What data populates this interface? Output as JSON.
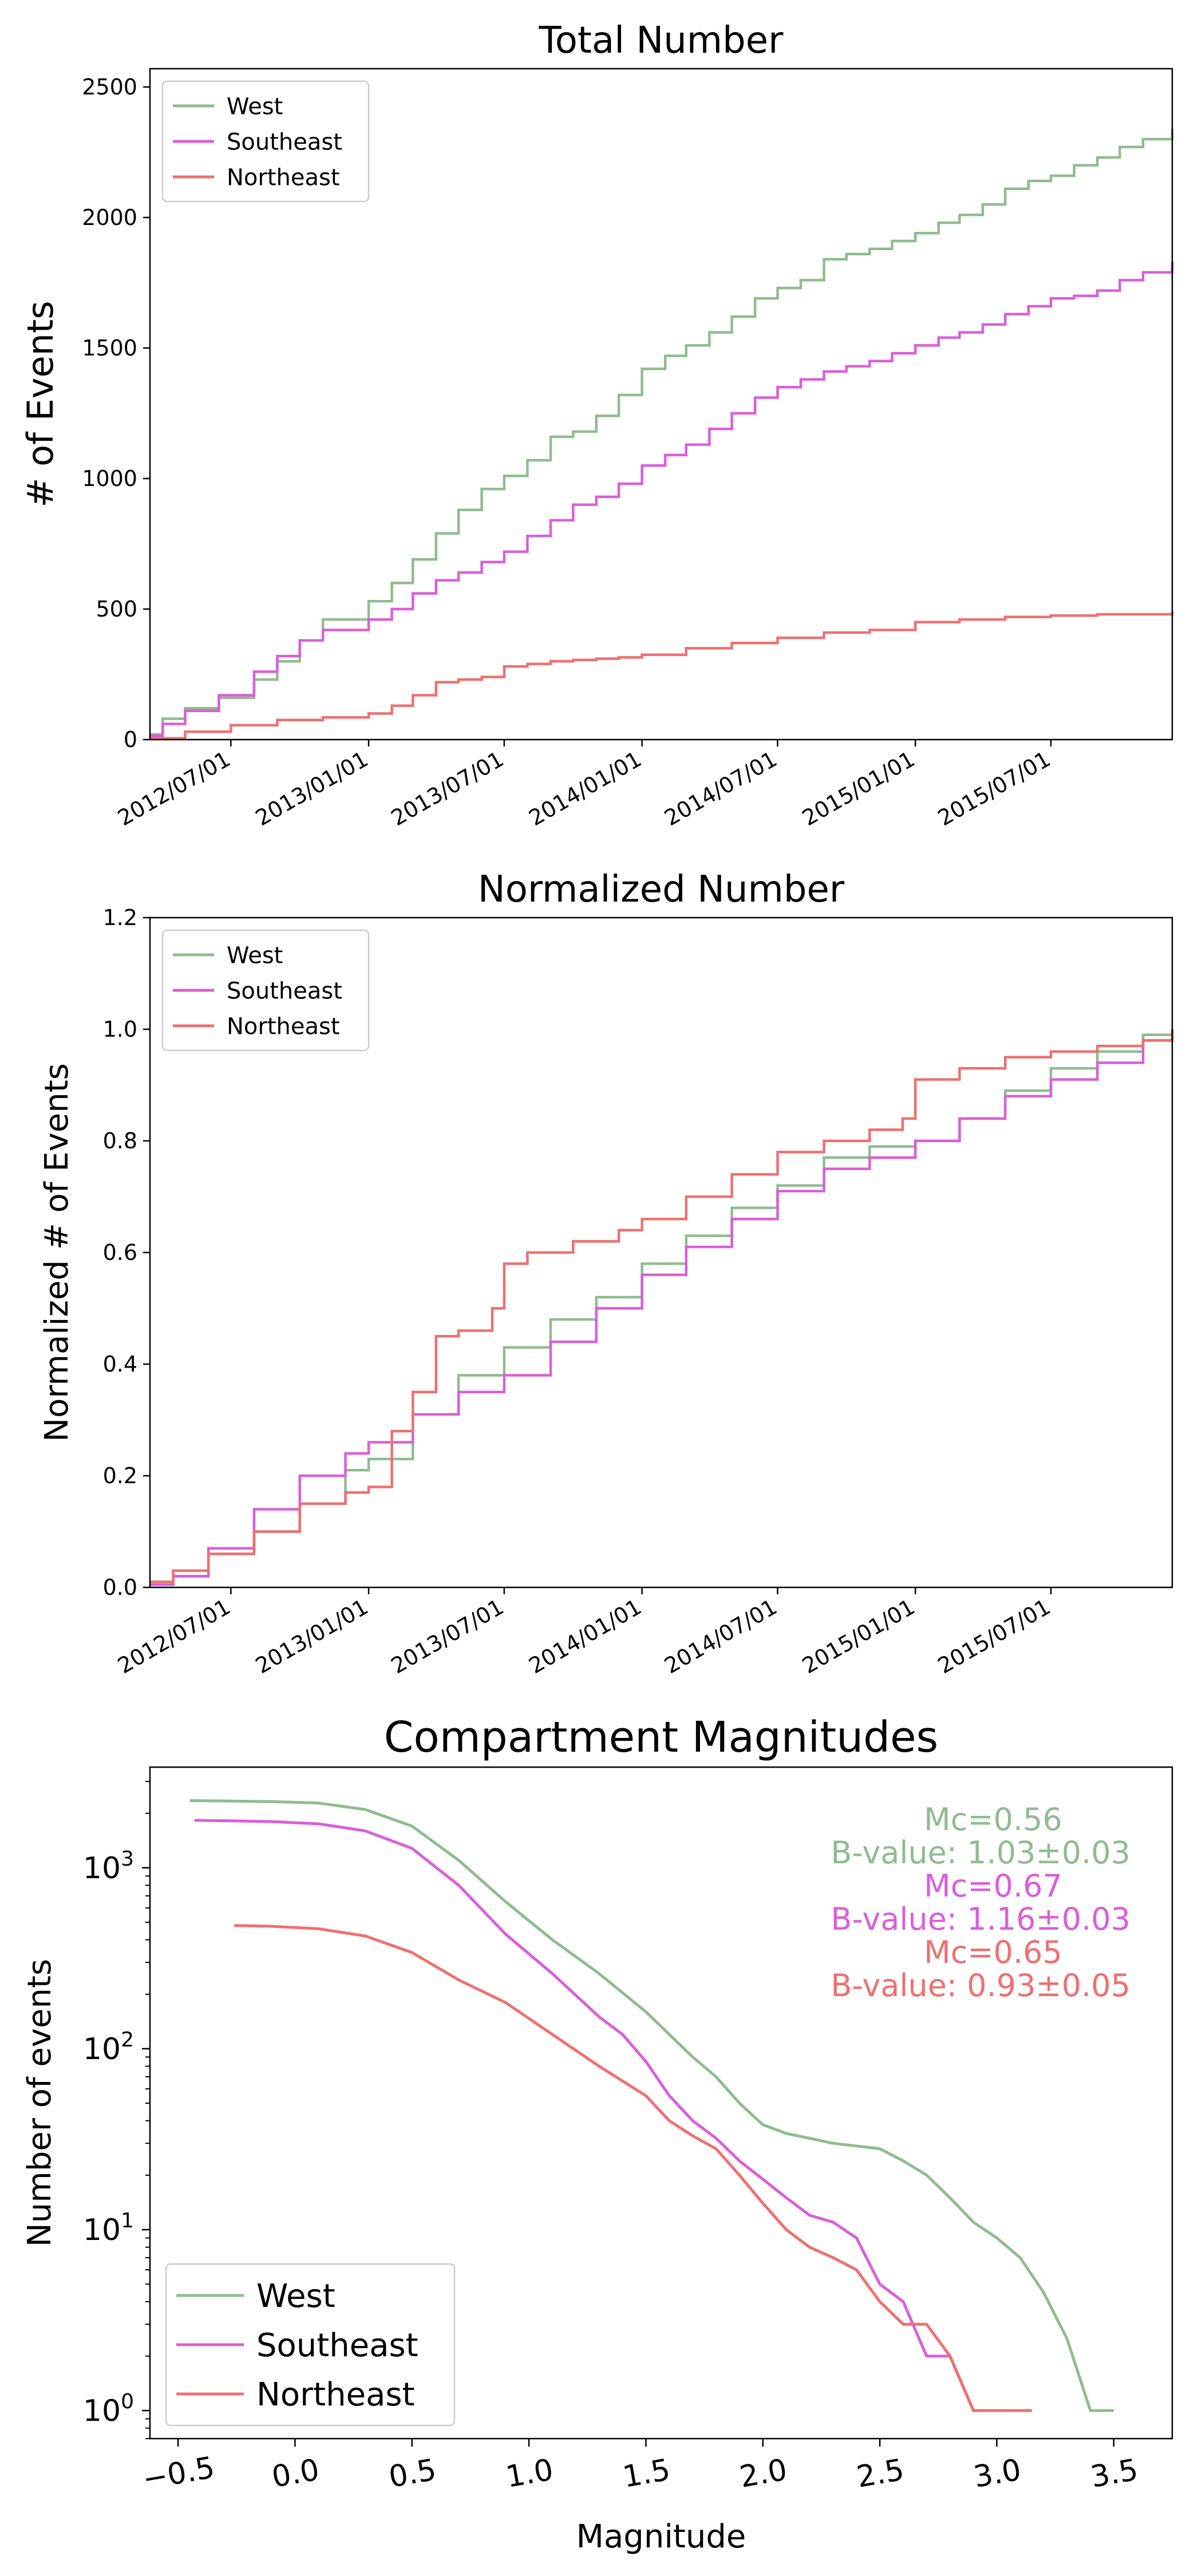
{
  "chart_data": [
    {
      "type": "line",
      "title": "Total Number",
      "xlabel": "",
      "ylabel": "# of Events",
      "ylim": [
        0,
        2570
      ],
      "xlim": [
        "2012-03-15",
        "2015-12-10"
      ],
      "x_ticks": [
        "2012/07/01",
        "2013/01/01",
        "2013/07/01",
        "2014/01/01",
        "2014/07/01",
        "2015/01/01",
        "2015/07/01"
      ],
      "y_ticks": [
        0,
        500,
        1000,
        1500,
        2000,
        2500
      ],
      "y_tick_labels": [
        "0",
        "500",
        "1000",
        "1500",
        "2000",
        "2500"
      ],
      "legend": "top-left",
      "grid": false,
      "series": [
        {
          "name": "West",
          "color": "#8fbc8f",
          "x": [
            "2012-03-15",
            "2012-04-01",
            "2012-05-01",
            "2012-06-15",
            "2012-08-01",
            "2012-09-01",
            "2012-10-01",
            "2012-11-01",
            "2013-01-01",
            "2013-02-01",
            "2013-03-01",
            "2013-04-01",
            "2013-05-01",
            "2013-06-01",
            "2013-07-01",
            "2013-08-01",
            "2013-09-01",
            "2013-10-01",
            "2013-11-01",
            "2013-12-01",
            "2014-01-01",
            "2014-02-01",
            "2014-03-01",
            "2014-04-01",
            "2014-05-01",
            "2014-06-01",
            "2014-07-01",
            "2014-08-01",
            "2014-09-01",
            "2014-10-01",
            "2014-11-01",
            "2014-12-01",
            "2015-01-01",
            "2015-02-01",
            "2015-03-01",
            "2015-04-01",
            "2015-05-01",
            "2015-06-01",
            "2015-07-01",
            "2015-08-01",
            "2015-09-01",
            "2015-10-01",
            "2015-11-01",
            "2015-12-10"
          ],
          "values": [
            20,
            80,
            120,
            160,
            230,
            300,
            380,
            460,
            530,
            600,
            690,
            790,
            880,
            960,
            1010,
            1070,
            1160,
            1180,
            1240,
            1320,
            1420,
            1470,
            1510,
            1560,
            1620,
            1690,
            1730,
            1760,
            1840,
            1860,
            1880,
            1910,
            1940,
            1980,
            2010,
            2050,
            2110,
            2140,
            2160,
            2200,
            2230,
            2270,
            2300,
            2340
          ]
        },
        {
          "name": "Southeast",
          "color": "#d95fd9",
          "x": [
            "2012-03-15",
            "2012-04-01",
            "2012-05-01",
            "2012-06-15",
            "2012-08-01",
            "2012-09-01",
            "2012-10-01",
            "2012-11-01",
            "2013-01-01",
            "2013-02-01",
            "2013-03-01",
            "2013-04-01",
            "2013-05-01",
            "2013-06-01",
            "2013-07-01",
            "2013-08-01",
            "2013-09-01",
            "2013-10-01",
            "2013-11-01",
            "2013-12-01",
            "2014-01-01",
            "2014-02-01",
            "2014-03-01",
            "2014-04-01",
            "2014-05-01",
            "2014-06-01",
            "2014-07-01",
            "2014-08-01",
            "2014-09-01",
            "2014-10-01",
            "2014-11-01",
            "2014-12-01",
            "2015-01-01",
            "2015-02-01",
            "2015-03-01",
            "2015-04-01",
            "2015-05-01",
            "2015-06-01",
            "2015-07-01",
            "2015-08-01",
            "2015-09-01",
            "2015-10-01",
            "2015-11-01",
            "2015-12-10"
          ],
          "values": [
            15,
            60,
            110,
            170,
            260,
            320,
            380,
            420,
            460,
            500,
            560,
            610,
            640,
            680,
            720,
            780,
            840,
            900,
            930,
            980,
            1050,
            1090,
            1130,
            1190,
            1250,
            1310,
            1350,
            1380,
            1410,
            1430,
            1450,
            1480,
            1510,
            1540,
            1560,
            1590,
            1630,
            1660,
            1690,
            1700,
            1720,
            1760,
            1790,
            1830
          ]
        },
        {
          "name": "Northeast",
          "color": "#ee7070",
          "x": [
            "2012-03-15",
            "2012-05-01",
            "2012-07-01",
            "2012-09-01",
            "2012-11-01",
            "2013-01-01",
            "2013-02-01",
            "2013-03-01",
            "2013-04-01",
            "2013-05-01",
            "2013-06-01",
            "2013-07-01",
            "2013-08-01",
            "2013-09-01",
            "2013-10-01",
            "2013-11-01",
            "2013-12-01",
            "2014-01-01",
            "2014-03-01",
            "2014-05-01",
            "2014-07-01",
            "2014-09-01",
            "2014-11-01",
            "2015-01-01",
            "2015-03-01",
            "2015-05-01",
            "2015-07-01",
            "2015-09-01",
            "2015-12-10"
          ],
          "values": [
            5,
            30,
            55,
            75,
            85,
            100,
            130,
            170,
            220,
            230,
            240,
            280,
            290,
            300,
            305,
            310,
            315,
            325,
            350,
            370,
            390,
            410,
            420,
            450,
            460,
            470,
            475,
            480,
            490
          ]
        }
      ]
    },
    {
      "type": "line",
      "title": "Normalized Number",
      "xlabel": "",
      "ylabel": "Normalized # of Events",
      "ylim": [
        0,
        1.2
      ],
      "xlim": [
        "2012-03-15",
        "2015-12-10"
      ],
      "x_ticks": [
        "2012/07/01",
        "2013/01/01",
        "2013/07/01",
        "2014/01/01",
        "2014/07/01",
        "2015/01/01",
        "2015/07/01"
      ],
      "y_ticks": [
        0,
        0.2,
        0.4,
        0.6,
        0.8,
        1.0,
        1.2
      ],
      "y_tick_labels": [
        "0.0",
        "0.2",
        "0.4",
        "0.6",
        "0.8",
        "1.0",
        "1.2"
      ],
      "legend": "top-left",
      "grid": false,
      "series": [
        {
          "name": "West",
          "color": "#8fbc8f",
          "x": [
            "2012-03-15",
            "2012-04-15",
            "2012-06-01",
            "2012-08-01",
            "2012-10-01",
            "2012-12-01",
            "2013-01-01",
            "2013-03-01",
            "2013-05-01",
            "2013-07-01",
            "2013-09-01",
            "2013-11-01",
            "2014-01-01",
            "2014-03-01",
            "2014-05-01",
            "2014-07-01",
            "2014-09-01",
            "2014-11-01",
            "2015-01-01",
            "2015-03-01",
            "2015-05-01",
            "2015-07-01",
            "2015-09-01",
            "2015-11-01",
            "2015-12-10"
          ],
          "values": [
            0.005,
            0.02,
            0.06,
            0.1,
            0.15,
            0.21,
            0.23,
            0.31,
            0.38,
            0.43,
            0.48,
            0.52,
            0.58,
            0.63,
            0.68,
            0.72,
            0.77,
            0.79,
            0.8,
            0.84,
            0.89,
            0.93,
            0.96,
            0.99,
            1.0
          ]
        },
        {
          "name": "Southeast",
          "color": "#d95fd9",
          "x": [
            "2012-03-15",
            "2012-04-15",
            "2012-06-01",
            "2012-08-01",
            "2012-10-01",
            "2012-12-01",
            "2013-01-01",
            "2013-03-01",
            "2013-05-01",
            "2013-07-01",
            "2013-09-01",
            "2013-11-01",
            "2014-01-01",
            "2014-03-01",
            "2014-05-01",
            "2014-07-01",
            "2014-09-01",
            "2014-11-01",
            "2015-01-01",
            "2015-03-01",
            "2015-05-01",
            "2015-07-01",
            "2015-09-01",
            "2015-11-01",
            "2015-12-10"
          ],
          "values": [
            0.005,
            0.02,
            0.07,
            0.14,
            0.2,
            0.24,
            0.26,
            0.31,
            0.35,
            0.38,
            0.44,
            0.5,
            0.56,
            0.61,
            0.66,
            0.71,
            0.75,
            0.77,
            0.8,
            0.84,
            0.88,
            0.91,
            0.94,
            0.98,
            1.0
          ]
        },
        {
          "name": "Northeast",
          "color": "#ee7070",
          "x": [
            "2012-03-15",
            "2012-04-15",
            "2012-06-01",
            "2012-08-01",
            "2012-10-01",
            "2012-12-01",
            "2013-01-01",
            "2013-02-01",
            "2013-03-01",
            "2013-04-01",
            "2013-05-01",
            "2013-06-15",
            "2013-07-01",
            "2013-08-01",
            "2013-10-01",
            "2013-12-01",
            "2014-01-01",
            "2014-03-01",
            "2014-05-01",
            "2014-07-01",
            "2014-09-01",
            "2014-11-01",
            "2014-12-15",
            "2015-01-01",
            "2015-03-01",
            "2015-05-01",
            "2015-07-01",
            "2015-09-01",
            "2015-11-01",
            "2015-12-10"
          ],
          "values": [
            0.01,
            0.03,
            0.06,
            0.1,
            0.15,
            0.17,
            0.18,
            0.28,
            0.35,
            0.45,
            0.46,
            0.5,
            0.58,
            0.6,
            0.62,
            0.64,
            0.66,
            0.7,
            0.74,
            0.78,
            0.8,
            0.82,
            0.84,
            0.91,
            0.93,
            0.95,
            0.96,
            0.97,
            0.98,
            1.0
          ]
        }
      ]
    },
    {
      "type": "line",
      "title": "Compartment Magnitudes",
      "xlabel": "Magnitude",
      "ylabel": "Number of events",
      "y_scale": "log",
      "xlim": [
        -0.62,
        3.75
      ],
      "ylim": [
        0.7,
        3600
      ],
      "x_ticks": [
        -0.5,
        0.0,
        0.5,
        1.0,
        1.5,
        2.0,
        2.5,
        3.0,
        3.5
      ],
      "x_tick_labels": [
        "−0.5",
        "0.0",
        "0.5",
        "1.0",
        "1.5",
        "2.0",
        "2.5",
        "3.0",
        "3.5"
      ],
      "y_ticks": [
        1,
        10,
        100,
        1000
      ],
      "y_tick_labels": [
        "10",
        "10",
        "10",
        "10"
      ],
      "y_tick_exponents": [
        "0",
        "1",
        "2",
        "3"
      ],
      "legend": "bottom-left",
      "grid": false,
      "annotations": [
        {
          "text": "Mc=0.56",
          "color": "#8fbc8f"
        },
        {
          "text": "B-value: 1.03±0.03",
          "color": "#8fbc8f"
        },
        {
          "text": "Mc=0.67",
          "color": "#d95fd9"
        },
        {
          "text": "B-value: 1.16±0.03",
          "color": "#d95fd9"
        },
        {
          "text": "Mc=0.65",
          "color": "#ee7070"
        },
        {
          "text": "B-value: 0.93±0.05",
          "color": "#ee7070"
        }
      ],
      "series": [
        {
          "name": "West",
          "color": "#8fbc8f",
          "x": [
            -0.45,
            -0.3,
            -0.1,
            0.1,
            0.3,
            0.5,
            0.7,
            0.9,
            1.1,
            1.3,
            1.5,
            1.6,
            1.7,
            1.8,
            1.9,
            2.0,
            2.1,
            2.2,
            2.3,
            2.4,
            2.5,
            2.6,
            2.7,
            2.8,
            2.9,
            3.0,
            3.1,
            3.2,
            3.3,
            3.4,
            3.5
          ],
          "values": [
            2350,
            2340,
            2320,
            2280,
            2100,
            1700,
            1100,
            650,
            400,
            260,
            160,
            120,
            90,
            70,
            50,
            38,
            34,
            32,
            30,
            29,
            28,
            24,
            20,
            15,
            11,
            9,
            7,
            4.5,
            2.5,
            1,
            1
          ]
        },
        {
          "name": "Southeast",
          "color": "#d95fd9",
          "x": [
            -0.43,
            -0.3,
            -0.1,
            0.1,
            0.3,
            0.5,
            0.7,
            0.9,
            1.1,
            1.3,
            1.4,
            1.5,
            1.6,
            1.7,
            1.8,
            1.9,
            2.0,
            2.1,
            2.2,
            2.3,
            2.4,
            2.5,
            2.6,
            2.7,
            2.8,
            2.9,
            3.0
          ],
          "values": [
            1830,
            1820,
            1800,
            1750,
            1600,
            1280,
            800,
            430,
            260,
            150,
            120,
            85,
            55,
            40,
            32,
            24,
            19,
            15,
            12,
            11,
            9,
            5,
            4,
            2,
            2,
            1,
            1
          ]
        },
        {
          "name": "Northeast",
          "color": "#ee7070",
          "x": [
            -0.26,
            -0.1,
            0.1,
            0.3,
            0.5,
            0.7,
            0.9,
            1.1,
            1.3,
            1.5,
            1.6,
            1.7,
            1.8,
            1.9,
            2.0,
            2.1,
            2.2,
            2.3,
            2.4,
            2.5,
            2.6,
            2.7,
            2.8,
            2.9,
            3.0,
            3.15
          ],
          "values": [
            480,
            475,
            460,
            420,
            340,
            240,
            180,
            120,
            80,
            55,
            40,
            33,
            28,
            20,
            14,
            10,
            8,
            7,
            6,
            4,
            3,
            3,
            2,
            1,
            1,
            1
          ]
        }
      ]
    }
  ]
}
